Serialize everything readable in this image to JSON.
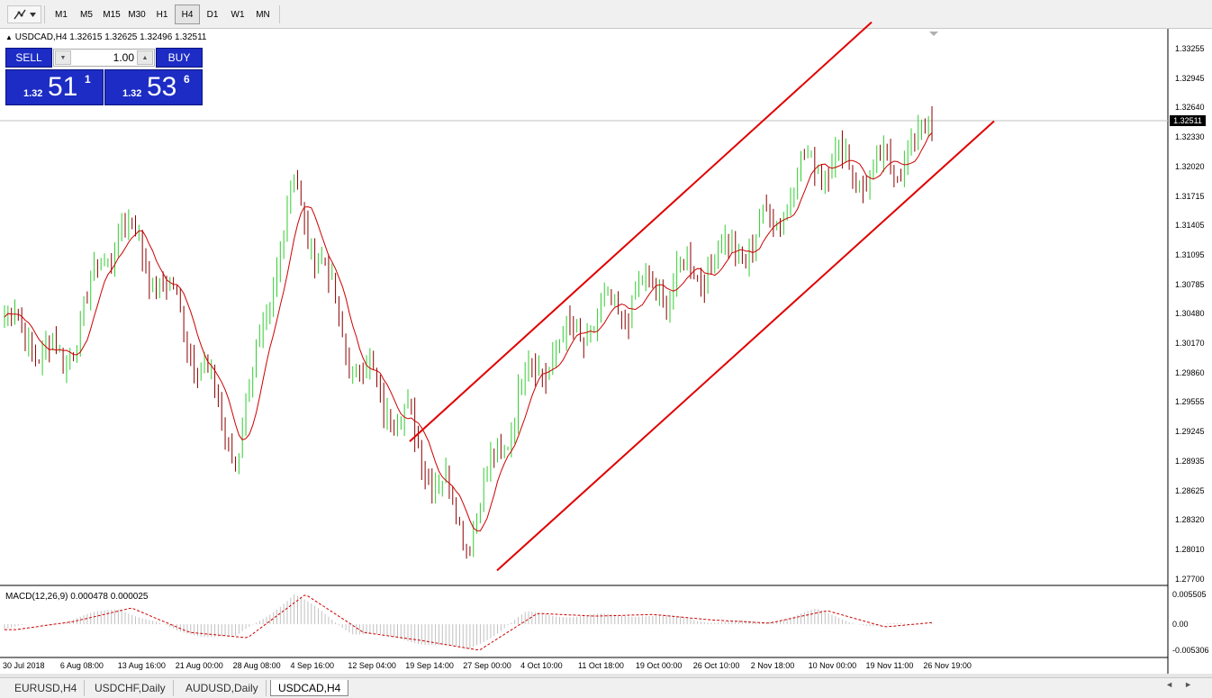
{
  "toolbar": {
    "timeframes": [
      "M1",
      "M5",
      "M15",
      "M30",
      "H1",
      "H4",
      "D1",
      "W1",
      "MN"
    ],
    "active_timeframe": "H4",
    "tool_icon": "line-tool-icon"
  },
  "chart": {
    "title": "USDCAD,H4  1.32615 1.32625 1.32496 1.32511",
    "current_price_tag": "1.32511",
    "colors": {
      "up": "#32cd32",
      "down": "#8b0000",
      "ma": "#cc0000",
      "channel": "#e00000",
      "macd_hist": "#c0c0c0",
      "signal": "#cc0000",
      "trade_blue": "#1c2cc4"
    }
  },
  "trade_panel": {
    "sell_label": "SELL",
    "buy_label": "BUY",
    "lot": "1.00",
    "sell_price": {
      "prefix": "1.32",
      "big": "51",
      "sup": "1"
    },
    "buy_price": {
      "prefix": "1.32",
      "big": "53",
      "sup": "6"
    }
  },
  "price_axis": [
    "1.33255",
    "1.32945",
    "1.32640",
    "1.32330",
    "1.32020",
    "1.31715",
    "1.31405",
    "1.31095",
    "1.30785",
    "1.30480",
    "1.30170",
    "1.29860",
    "1.29555",
    "1.29245",
    "1.28935",
    "1.28625",
    "1.28320",
    "1.28010",
    "1.27700"
  ],
  "time_axis": [
    "30 Jul 2018",
    "6 Aug 08:00",
    "13 Aug 16:00",
    "21 Aug 00:00",
    "28 Aug 08:00",
    "4 Sep 16:00",
    "12 Sep 04:00",
    "19 Sep 14:00",
    "27 Sep 00:00",
    "4 Oct 10:00",
    "11 Oct 18:00",
    "19 Oct 00:00",
    "26 Oct 10:00",
    "2 Nov 18:00",
    "10 Nov 00:00",
    "19 Nov 11:00",
    "26 Nov 19:00"
  ],
  "macd": {
    "label": "MACD(12,26,9) 0.000478 0.000025",
    "axis": [
      "0.005505",
      "0.00",
      "-0.005306"
    ]
  },
  "tabs": [
    "EURUSD,H4",
    "USDCHF,Daily",
    "AUDUSD,Daily",
    "USDCAD,H4"
  ],
  "active_tab": "USDCAD,H4",
  "chart_data": {
    "type": "line",
    "title": "USDCAD,H4",
    "price_range": [
      1.277,
      1.3357
    ],
    "x": [
      "30 Jul 2018",
      "6 Aug 08:00",
      "13 Aug 16:00",
      "21 Aug 00:00",
      "28 Aug 08:00",
      "4 Sep 16:00",
      "12 Sep 04:00",
      "19 Sep 14:00",
      "27 Sep 00:00",
      "4 Oct 10:00",
      "11 Oct 18:00",
      "19 Oct 00:00",
      "26 Oct 10:00",
      "2 Nov 18:00",
      "10 Nov 00:00",
      "19 Nov 11:00",
      "26 Nov 19:00"
    ],
    "series": [
      {
        "name": "USDCAD",
        "values": [
          1.3052,
          1.3002,
          1.3155,
          1.306,
          1.2905,
          1.3195,
          1.3005,
          1.2932,
          1.282,
          1.299,
          1.304,
          1.3075,
          1.3105,
          1.3135,
          1.3225,
          1.32,
          1.3251
        ]
      }
    ],
    "macd_range": [
      -0.005306,
      0.005505
    ],
    "macd_values": [
      -0.001,
      0.0005,
      0.003,
      -0.0015,
      -0.0025,
      0.0055,
      -0.0015,
      -0.003,
      -0.0048,
      0.002,
      0.0015,
      0.0018,
      0.0008,
      0.0002,
      0.0025,
      -0.0005,
      0.0005
    ],
    "channel": {
      "upper": [
        [
          "19 Sep 14:00",
          1.292
        ],
        [
          "after 26 Nov 19:00",
          1.3365
        ]
      ],
      "lower": [
        [
          "27 Sep 00:00",
          1.2783
        ],
        [
          "after 26 Nov 19:00",
          1.326
        ]
      ]
    },
    "grid": false
  }
}
